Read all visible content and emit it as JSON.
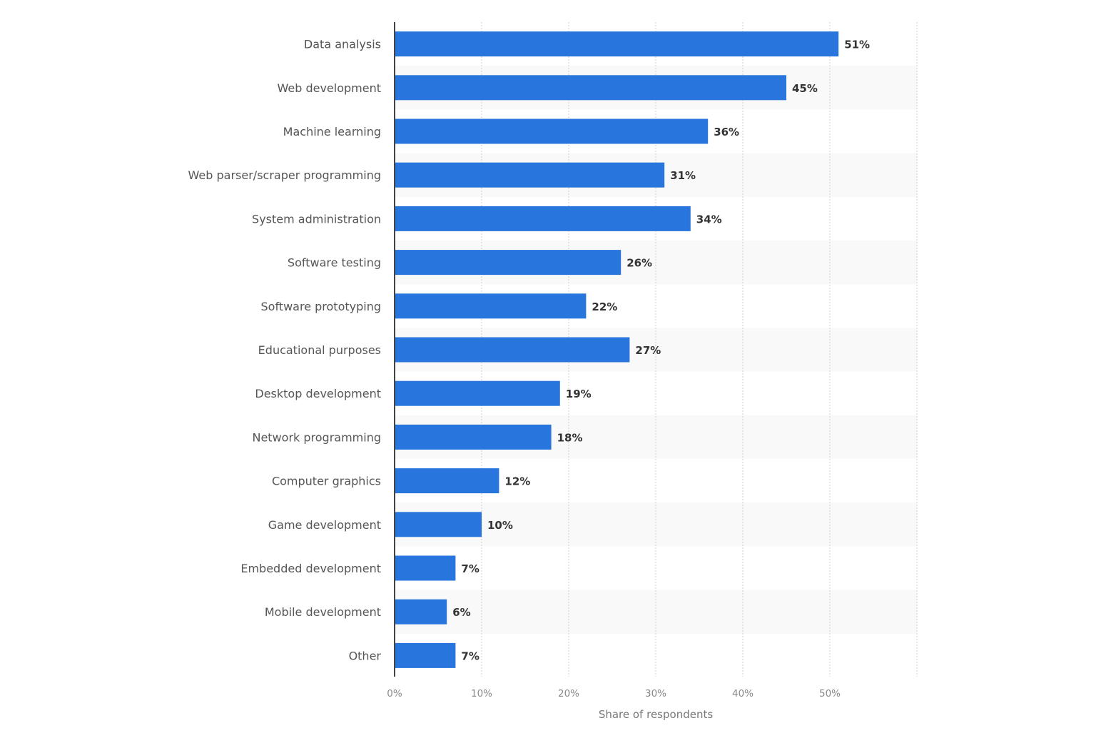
{
  "chart_data": {
    "type": "bar",
    "orientation": "horizontal",
    "categories": [
      "Data analysis",
      "Web development",
      "Machine learning",
      "Web parser/scraper programming",
      "System administration",
      "Software testing",
      "Software prototyping",
      "Educational purposes",
      "Desktop development",
      "Network programming",
      "Computer graphics",
      "Game development",
      "Embedded development",
      "Mobile development",
      "Other"
    ],
    "values": [
      51,
      45,
      36,
      31,
      34,
      26,
      22,
      27,
      19,
      18,
      12,
      10,
      7,
      6,
      7
    ],
    "value_labels": [
      "51%",
      "45%",
      "36%",
      "31%",
      "34%",
      "26%",
      "22%",
      "27%",
      "19%",
      "18%",
      "12%",
      "10%",
      "7%",
      "6%",
      "7%"
    ],
    "xlabel": "Share of respondents",
    "ylabel": "",
    "xlim": [
      0,
      60
    ],
    "xticks": [
      0,
      10,
      20,
      30,
      40,
      50
    ],
    "xtick_labels": [
      "0%",
      "10%",
      "20%",
      "30%",
      "40%",
      "50%"
    ],
    "grid": true,
    "colors": {
      "bar": "#2876dd",
      "band": "#f9f9f9",
      "grid": "#cfcfcf",
      "axis": "#444444"
    }
  }
}
